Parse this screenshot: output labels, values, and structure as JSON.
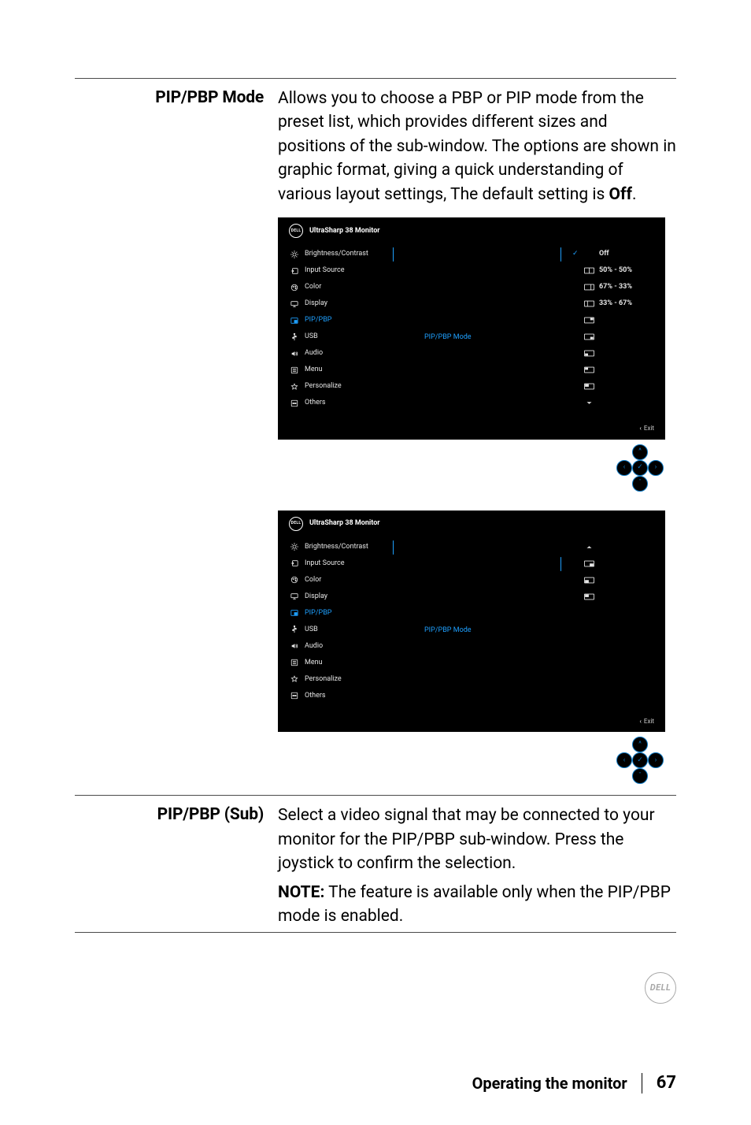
{
  "section1": {
    "label": "PIP/PBP Mode",
    "body_pre": "Allows you to choose a PBP or PIP mode from the preset list, which provides different sizes and positions of the sub-window. The options are shown in graphic format, giving a quick understanding of various layout settings, The default setting is ",
    "body_bold": "Off",
    "body_post": "."
  },
  "osd": {
    "title": "UltraSharp 38 Monitor",
    "dell": "DELL",
    "items": [
      {
        "label": "Brightness/Contrast",
        "hl": false,
        "icon": "sun"
      },
      {
        "label": "Input Source",
        "hl": false,
        "icon": "input"
      },
      {
        "label": "Color",
        "hl": false,
        "icon": "palette"
      },
      {
        "label": "Display",
        "hl": false,
        "icon": "display"
      },
      {
        "label": "PIP/PBP",
        "hl": true,
        "icon": "pip"
      },
      {
        "label": "USB",
        "hl": false,
        "icon": "usb"
      },
      {
        "label": "Audio",
        "hl": false,
        "icon": "audio"
      },
      {
        "label": "Menu",
        "hl": false,
        "icon": "menu"
      },
      {
        "label": "Personalize",
        "hl": false,
        "icon": "star"
      },
      {
        "label": "Others",
        "hl": false,
        "icon": "others"
      }
    ],
    "mid_label": "PIP/PBP Mode",
    "options_a": [
      {
        "check": true,
        "kind": "off",
        "text": "Off"
      },
      {
        "check": false,
        "kind": "pbp-50",
        "text": "50% - 50%"
      },
      {
        "check": false,
        "kind": "pbp-67",
        "text": "67% - 33%"
      },
      {
        "check": false,
        "kind": "pbp-33",
        "text": "33% - 67%"
      },
      {
        "check": false,
        "kind": "pip-tr",
        "text": ""
      },
      {
        "check": false,
        "kind": "pip-br",
        "text": ""
      },
      {
        "check": false,
        "kind": "pip-bl",
        "text": ""
      },
      {
        "check": false,
        "kind": "pip-tl",
        "text": ""
      },
      {
        "check": false,
        "kind": "pip-tl2",
        "text": ""
      },
      {
        "check": false,
        "kind": "down",
        "text": ""
      }
    ],
    "options_b": [
      {
        "check": false,
        "kind": "up",
        "text": ""
      },
      {
        "check": false,
        "kind": "pip-br2",
        "text": ""
      },
      {
        "check": false,
        "kind": "pip-bl2",
        "text": ""
      },
      {
        "check": false,
        "kind": "pip-tl3",
        "text": ""
      }
    ],
    "exit": "Exit"
  },
  "section2": {
    "label": "PIP/PBP (Sub)",
    "body1": "Select a video signal that may be connected to your monitor for the PIP/PBP sub-window. Press the joystick to confirm the selection.",
    "note_bold": "NOTE:",
    "note_rest": " The feature is available only when the PIP/PBP mode is enabled."
  },
  "footer": {
    "title": "Operating the monitor",
    "page": "67",
    "logo": "DELL"
  },
  "colors": {
    "accent": "#1ea0ff",
    "osd_bg": "#000000",
    "osd_fg": "#e6e6e6"
  }
}
